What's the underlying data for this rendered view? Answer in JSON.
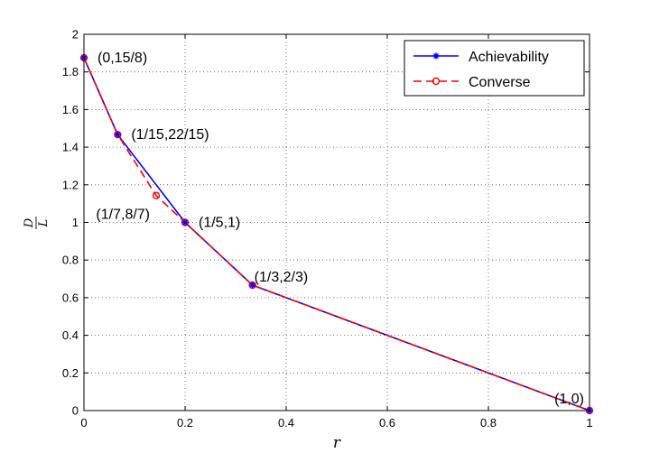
{
  "chart_data": {
    "type": "line",
    "xlabel": "r",
    "ylabel": {
      "numerator": "D",
      "denominator": "L"
    },
    "xlim": [
      0,
      1
    ],
    "ylim": [
      0,
      2
    ],
    "xticks": [
      "0",
      "0.2",
      "0.4",
      "0.6",
      "0.8",
      "1"
    ],
    "yticks": [
      "0",
      "0.2",
      "0.4",
      "0.6",
      "0.8",
      "1",
      "1.2",
      "1.4",
      "1.6",
      "1.8",
      "2"
    ],
    "grid": true,
    "legend_position": "top-right",
    "series": [
      {
        "name": "Achievability",
        "color": "#0000ff",
        "line": "solid",
        "marker": "asterisk",
        "points": [
          [
            0,
            1.875
          ],
          [
            0.0667,
            1.4667
          ],
          [
            0.2,
            1.0
          ],
          [
            0.3333,
            0.6667
          ],
          [
            1.0,
            0.0
          ]
        ]
      },
      {
        "name": "Converse",
        "color": "#ff0000",
        "line": "dashed",
        "marker": "circle",
        "points": [
          [
            0,
            1.875
          ],
          [
            0.0667,
            1.4667
          ],
          [
            0.1429,
            1.1429
          ],
          [
            0.2,
            1.0
          ],
          [
            0.3333,
            0.6667
          ],
          [
            1.0,
            0.0
          ]
        ]
      }
    ],
    "annotations": [
      {
        "text": "(0,15/8)",
        "x": 0,
        "y": 1.875,
        "anchor": "right"
      },
      {
        "text": "(1/15,22/15)",
        "x": 0.0667,
        "y": 1.4667,
        "anchor": "right"
      },
      {
        "text": "(1/7,8/7)",
        "x": 0.1429,
        "y": 1.1429,
        "anchor": "below-left"
      },
      {
        "text": "(1/5,1)",
        "x": 0.2,
        "y": 1.0,
        "anchor": "right"
      },
      {
        "text": "(1/3,2/3)",
        "x": 0.3333,
        "y": 0.6667,
        "anchor": "above"
      },
      {
        "text": "(1,0)",
        "x": 1.0,
        "y": 0.0,
        "anchor": "above-left"
      }
    ]
  }
}
